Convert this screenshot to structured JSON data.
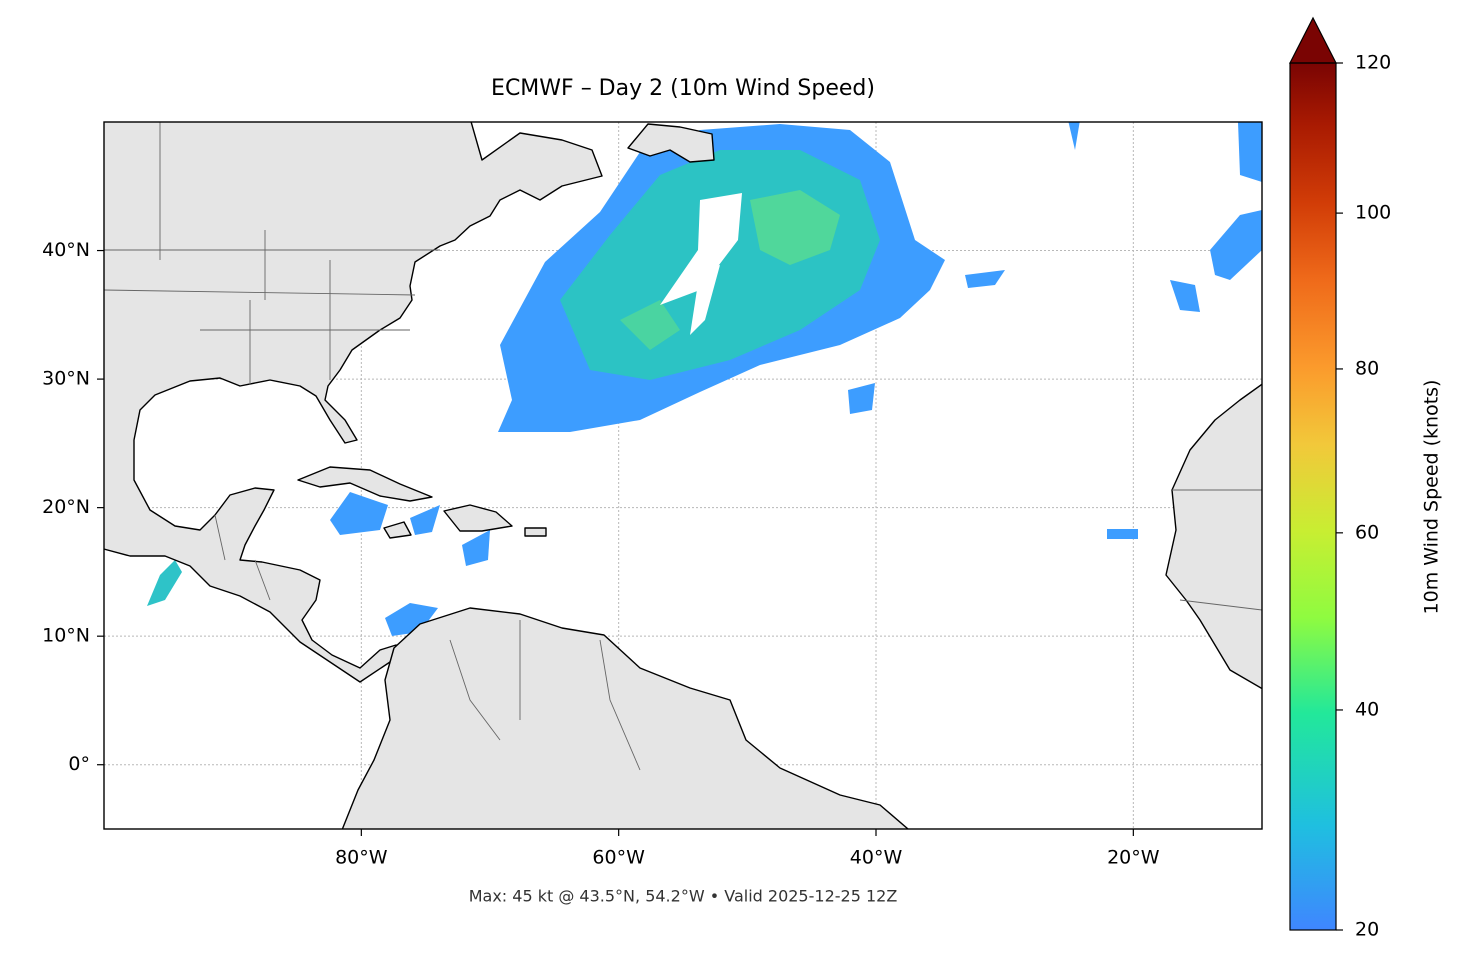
{
  "map": {
    "title": "ECMWF – Day 2 (10m Wind Speed)",
    "xlim": [
      -100,
      -10
    ],
    "ylim": [
      -5,
      50
    ],
    "xticks": [
      {
        "value": -80,
        "label": "80°W"
      },
      {
        "value": -60,
        "label": "60°W"
      },
      {
        "value": -40,
        "label": "40°W"
      },
      {
        "value": -20,
        "label": "20°W"
      }
    ],
    "yticks": [
      {
        "value": 0,
        "label": "0°"
      },
      {
        "value": 10,
        "label": "10°N"
      },
      {
        "value": 20,
        "label": "20°N"
      },
      {
        "value": 30,
        "label": "30°N"
      },
      {
        "value": 40,
        "label": "40°N"
      }
    ],
    "grid": true,
    "colorbar": {
      "label": "10m Wind Speed (knots)",
      "lim": [
        20,
        120
      ],
      "ticks": [
        20,
        40,
        60,
        80,
        100,
        120
      ]
    },
    "footer": "Max: 45 kt @ 43.5°N, 54.2°W • Valid 2025-12-25 12Z"
  }
}
